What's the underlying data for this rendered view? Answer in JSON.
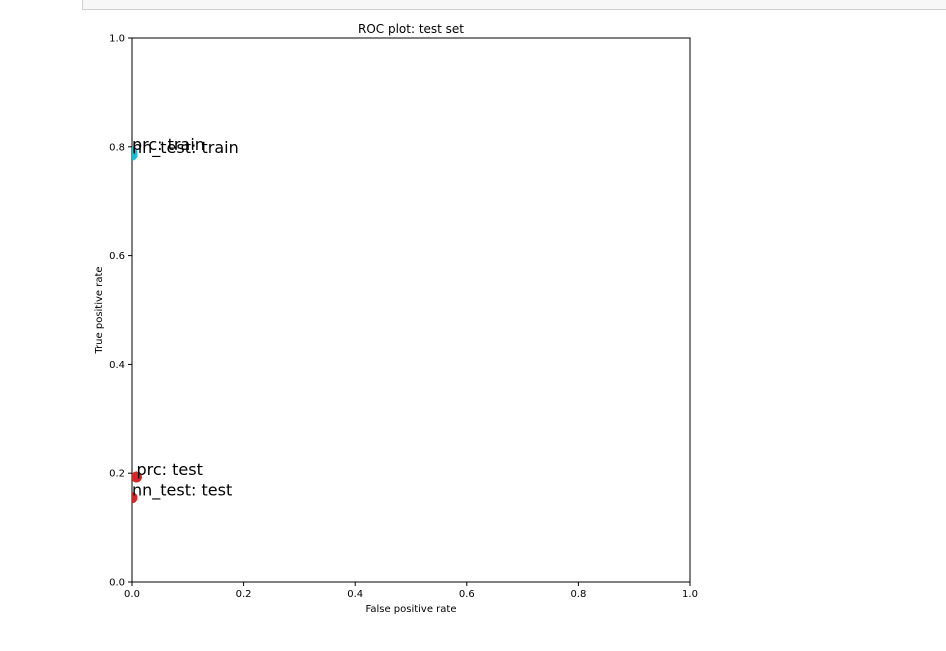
{
  "chart_data": {
    "type": "scatter",
    "title": "ROC plot: test set",
    "xlabel": "False positive rate",
    "ylabel": "True positive rate",
    "xlim": [
      0.0,
      1.0
    ],
    "ylim": [
      0.0,
      1.0
    ],
    "x_ticks": [
      "0.0",
      "0.2",
      "0.4",
      "0.6",
      "0.8",
      "1.0"
    ],
    "y_ticks": [
      "0.0",
      "0.2",
      "0.4",
      "0.6",
      "0.8",
      "1.0"
    ],
    "grid": false,
    "points": [
      {
        "label": "nn_test: train",
        "x": 0.0,
        "y": 0.785,
        "color": "#17becf"
      },
      {
        "label": "prc: train",
        "x": 0.0,
        "y": 0.79,
        "color": "#17becf"
      },
      {
        "label": "prc: test",
        "x": 0.008,
        "y": 0.193,
        "color": "#d62728"
      },
      {
        "label": "nn_test: test",
        "x": 0.0,
        "y": 0.155,
        "color": "#d62728"
      }
    ]
  }
}
